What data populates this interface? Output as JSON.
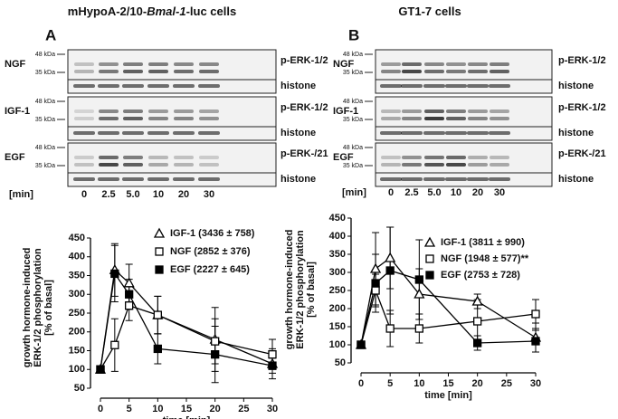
{
  "panels": [
    {
      "letter": "A",
      "title": [
        "mHypoA-2/10-",
        "Bmal-1",
        "-luc cells"
      ],
      "blots": [
        {
          "label": "NGF",
          "ladder": [
            "48 kDa",
            "35 kDa"
          ],
          "bands": [
            "p-ERK-1/2",
            "histone"
          ]
        },
        {
          "label": "IGF-1",
          "ladder": [
            "48 kDa",
            "35 kDa"
          ],
          "bands": [
            "p-ERK-1/2",
            "histone"
          ]
        },
        {
          "label": "EGF",
          "ladder": [
            "48 kDa",
            "35 kDa"
          ],
          "bands": [
            "p-ERK-/21",
            "histone"
          ]
        }
      ],
      "time_label": "[min]",
      "times": [
        "0",
        "2.5",
        "5.0",
        "10",
        "20",
        "30"
      ]
    },
    {
      "letter": "B",
      "title": [
        "GT1-7 cells"
      ],
      "blots": [
        {
          "label": "NGF",
          "ladder": [
            "48 kDa",
            "35 kDa"
          ],
          "bands": [
            "p-ERK-1/2",
            "histone"
          ]
        },
        {
          "label": "IGF-1",
          "ladder": [
            "48 kDa",
            "35 kDa"
          ],
          "bands": [
            "p-ERK-1/2",
            "histone"
          ]
        },
        {
          "label": "EGF",
          "ladder": [
            "48 kDa",
            "35 kDa"
          ],
          "bands": [
            "p-ERK-/21",
            "histone"
          ]
        }
      ],
      "time_label": "[min]",
      "times": [
        "0",
        "2.5",
        "5.0",
        "10",
        "20",
        "30"
      ]
    }
  ],
  "chart_data": [
    {
      "type": "line",
      "ylabel": [
        "growth hormone-induced",
        "ERK-1/2 phosphorylation",
        "[% of basal]"
      ],
      "xlabel": "time [min]",
      "x": [
        0,
        2.5,
        5,
        10,
        20,
        30
      ],
      "xlim": [
        0,
        30
      ],
      "xticks": [
        0,
        5,
        10,
        15,
        20,
        25,
        30
      ],
      "ylim": [
        50,
        450
      ],
      "yticks": [
        50,
        100,
        150,
        200,
        250,
        300,
        350,
        400,
        450
      ],
      "series": [
        {
          "name": "IGF-1 (3436 ± 758)",
          "marker": "triangle",
          "color": "#000000",
          "values": [
            100,
            365,
            330,
            245,
            180,
            115
          ],
          "errors": [
            0,
            70,
            50,
            50,
            85,
            40
          ]
        },
        {
          "name": "NGF (2852 ± 376)",
          "marker": "open-square",
          "color": "#000000",
          "values": [
            100,
            165,
            270,
            245,
            175,
            140
          ],
          "errors": [
            0,
            70,
            40,
            50,
            60,
            40
          ]
        },
        {
          "name": "EGF (2227 ± 645)",
          "marker": "filled-square",
          "color": "#000000",
          "values": [
            100,
            355,
            300,
            155,
            140,
            110
          ],
          "errors": [
            0,
            75,
            40,
            40,
            75,
            20
          ]
        }
      ]
    },
    {
      "type": "line",
      "ylabel": [
        "growth hormone-induced",
        "ERK-1/2 phosphorylation",
        "[% of basal]"
      ],
      "xlabel": "time [min]",
      "x": [
        0,
        2.5,
        5,
        10,
        20,
        30
      ],
      "xlim": [
        0,
        30
      ],
      "xticks": [
        0,
        5,
        10,
        15,
        20,
        25,
        30
      ],
      "ylim": [
        50,
        450
      ],
      "yticks": [
        50,
        100,
        150,
        200,
        250,
        300,
        350,
        400,
        450
      ],
      "series": [
        {
          "name": "IGF-1 (3811 ± 990)",
          "marker": "triangle",
          "color": "#000000",
          "values": [
            100,
            310,
            340,
            240,
            220,
            120
          ],
          "errors": [
            0,
            100,
            85,
            70,
            20,
            40
          ]
        },
        {
          "name": "NGF (1948 ± 577)**",
          "marker": "open-square",
          "color": "#000000",
          "values": [
            100,
            250,
            145,
            145,
            165,
            185
          ],
          "errors": [
            0,
            45,
            50,
            40,
            60,
            40
          ]
        },
        {
          "name": "EGF (2753 ± 728)",
          "marker": "filled-square",
          "color": "#000000",
          "values": [
            100,
            270,
            305,
            280,
            105,
            110
          ],
          "errors": [
            0,
            80,
            120,
            110,
            20,
            30
          ]
        }
      ]
    }
  ]
}
